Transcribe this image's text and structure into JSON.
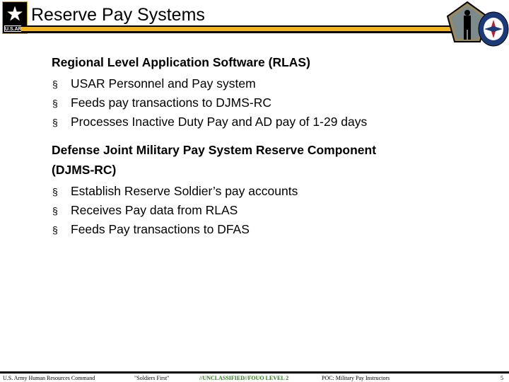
{
  "header": {
    "title": "Reserve Pay Systems",
    "logo_text": "U.S.ARMY",
    "icons": [
      "army-star-logo",
      "pentagon-soldier-logo",
      "hrc-seal-logo"
    ]
  },
  "sections": [
    {
      "heading": "Regional Level Application Software (RLAS)",
      "bullets": [
        "USAR Personnel and Pay system",
        "Feeds pay transactions to DJMS-RC",
        "Processes Inactive Duty Pay and AD pay of 1-29 days"
      ]
    },
    {
      "heading_lines": [
        "Defense Joint Military Pay System Reserve Component",
        "(DJMS-RC)"
      ],
      "bullets": [
        "Establish Reserve Soldier’s pay accounts",
        "Receives Pay data from RLAS",
        "Feeds Pay transactions to DFAS"
      ]
    }
  ],
  "bullet_marker": "§",
  "footer": {
    "org": "U.S. Army Human Resources Command",
    "motto": "\"Soldiers First\"",
    "classification": "//UNCLASSIFIED//FOUO LEVEL 2",
    "poc": "POC: Military Pay Instructors",
    "page": "5",
    "classification_color": "#2e7d1e"
  },
  "colors": {
    "gold": "#f0b41c"
  }
}
